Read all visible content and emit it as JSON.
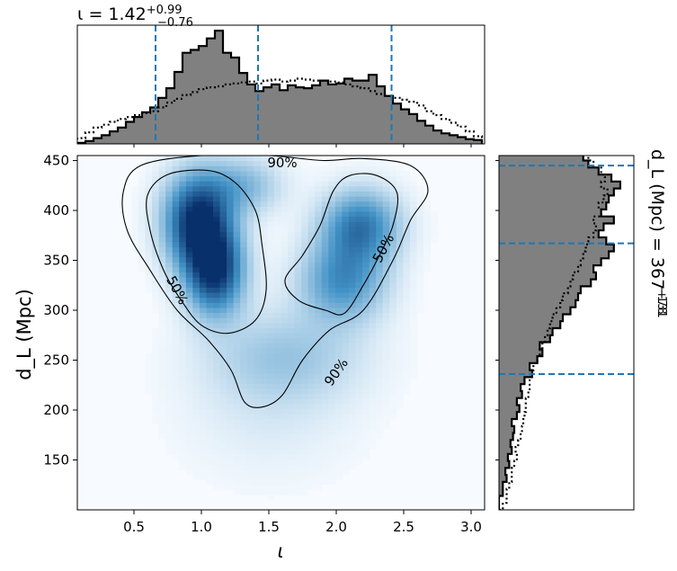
{
  "chart_data": [
    {
      "panel": "top-marginal",
      "type": "histogram",
      "title": "ι = 1.42",
      "title_sup": "+0.99",
      "title_sub": "−0.76",
      "xlim": [
        0.08,
        3.1
      ],
      "quantiles": [
        0.66,
        1.42,
        2.41
      ],
      "bins": [
        0.08,
        0.14,
        0.2,
        0.26,
        0.32,
        0.38,
        0.44,
        0.5,
        0.56,
        0.62,
        0.68,
        0.74,
        0.8,
        0.86,
        0.92,
        0.98,
        1.04,
        1.1,
        1.16,
        1.22,
        1.28,
        1.34,
        1.4,
        1.46,
        1.52,
        1.58,
        1.64,
        1.7,
        1.76,
        1.82,
        1.88,
        1.94,
        2.0,
        2.06,
        2.12,
        2.18,
        2.24,
        2.3,
        2.36,
        2.42,
        2.48,
        2.54,
        2.6,
        2.66,
        2.72,
        2.78,
        2.84,
        2.9,
        2.96,
        3.02,
        3.08
      ],
      "series": [
        {
          "style": "filled-black-edge",
          "values": [
            0.01,
            0.03,
            0.06,
            0.09,
            0.13,
            0.17,
            0.23,
            0.28,
            0.33,
            0.38,
            0.48,
            0.58,
            0.75,
            0.95,
            0.98,
            1.02,
            1.1,
            1.18,
            0.95,
            0.9,
            0.74,
            0.62,
            0.55,
            0.59,
            0.62,
            0.56,
            0.61,
            0.59,
            0.58,
            0.61,
            0.66,
            0.62,
            0.63,
            0.68,
            0.66,
            0.66,
            0.72,
            0.6,
            0.5,
            0.42,
            0.36,
            0.31,
            0.24,
            0.19,
            0.14,
            0.11,
            0.09,
            0.07,
            0.05,
            0.04
          ]
        },
        {
          "style": "dotted",
          "values": [
            0.06,
            0.12,
            0.17,
            0.2,
            0.23,
            0.26,
            0.28,
            0.3,
            0.32,
            0.34,
            0.38,
            0.43,
            0.47,
            0.51,
            0.54,
            0.57,
            0.59,
            0.6,
            0.62,
            0.63,
            0.64,
            0.65,
            0.63,
            0.66,
            0.67,
            0.65,
            0.66,
            0.68,
            0.67,
            0.66,
            0.66,
            0.65,
            0.64,
            0.62,
            0.6,
            0.58,
            0.55,
            0.52,
            0.5,
            0.48,
            0.46,
            0.44,
            0.4,
            0.34,
            0.3,
            0.26,
            0.22,
            0.18,
            0.13,
            0.08
          ]
        }
      ]
    },
    {
      "panel": "joint",
      "type": "heatmap",
      "xlabel": "ι",
      "ylabel": "d_L (Mpc)",
      "xlim": [
        0.08,
        3.1
      ],
      "ylim": [
        100,
        455
      ],
      "xticks": [
        "0.5",
        "1.0",
        "1.5",
        "2.0",
        "2.5",
        "3.0"
      ],
      "yticks": [
        "150",
        "200",
        "250",
        "300",
        "350",
        "400",
        "450"
      ],
      "blobs": [
        {
          "x": 0.97,
          "y": 390,
          "sx": 0.17,
          "sy": 32,
          "w": 1.0
        },
        {
          "x": 1.1,
          "y": 340,
          "sx": 0.15,
          "sy": 30,
          "w": 0.95
        },
        {
          "x": 1.3,
          "y": 425,
          "sx": 0.2,
          "sy": 20,
          "w": 0.35
        },
        {
          "x": 2.18,
          "y": 385,
          "sx": 0.2,
          "sy": 25,
          "w": 0.65
        },
        {
          "x": 2.05,
          "y": 330,
          "sx": 0.22,
          "sy": 28,
          "w": 0.55
        },
        {
          "x": 1.62,
          "y": 255,
          "sx": 0.4,
          "sy": 32,
          "w": 0.26
        },
        {
          "x": 1.5,
          "y": 195,
          "sx": 0.45,
          "sy": 45,
          "w": 0.08
        }
      ],
      "contours": [
        {
          "label": "90%",
          "points": [
            [
              0.42,
              418
            ],
            [
              0.55,
              445
            ],
            [
              1.0,
              455
            ],
            [
              1.5,
              455
            ],
            [
              1.9,
              450
            ],
            [
              2.2,
              452
            ],
            [
              2.55,
              445
            ],
            [
              2.68,
              420
            ],
            [
              2.55,
              390
            ],
            [
              2.42,
              350
            ],
            [
              2.2,
              300
            ],
            [
              1.95,
              280
            ],
            [
              1.75,
              250
            ],
            [
              1.6,
              215
            ],
            [
              1.45,
              203
            ],
            [
              1.32,
              208
            ],
            [
              1.22,
              240
            ],
            [
              1.05,
              270
            ],
            [
              0.82,
              300
            ],
            [
              0.62,
              340
            ],
            [
              0.45,
              380
            ],
            [
              0.42,
              418
            ]
          ]
        },
        {
          "label": "50%",
          "points": [
            [
              0.6,
              415
            ],
            [
              0.75,
              436
            ],
            [
              1.05,
              440
            ],
            [
              1.25,
              428
            ],
            [
              1.4,
              400
            ],
            [
              1.45,
              365
            ],
            [
              1.48,
              320
            ],
            [
              1.4,
              290
            ],
            [
              1.2,
              277
            ],
            [
              1.0,
              285
            ],
            [
              0.85,
              310
            ],
            [
              0.72,
              340
            ],
            [
              0.62,
              380
            ],
            [
              0.6,
              415
            ]
          ]
        },
        {
          "label": "50%",
          "points": [
            [
              1.98,
              420
            ],
            [
              2.1,
              435
            ],
            [
              2.3,
              435
            ],
            [
              2.45,
              418
            ],
            [
              2.42,
              385
            ],
            [
              2.32,
              355
            ],
            [
              2.2,
              325
            ],
            [
              2.06,
              297
            ],
            [
              1.92,
              300
            ],
            [
              1.72,
              310
            ],
            [
              1.62,
              330
            ],
            [
              1.75,
              355
            ],
            [
              1.88,
              385
            ],
            [
              1.98,
              420
            ]
          ]
        }
      ],
      "annotations": [
        {
          "text": "90%",
          "x": 1.6,
          "y": 448
        },
        {
          "text": "50%",
          "x": 0.82,
          "y": 320
        },
        {
          "text": "50%",
          "x": 2.35,
          "y": 362
        },
        {
          "text": "90%",
          "x": 2.0,
          "y": 238
        }
      ]
    },
    {
      "panel": "right-marginal",
      "type": "histogram",
      "orientation": "horizontal",
      "title": "d_L (Mpc) = 367",
      "title_sup": "+78",
      "title_sub": "−131",
      "ylim": [
        100,
        455
      ],
      "quantiles": [
        236,
        367,
        445
      ],
      "bins": [
        100,
        107,
        114,
        121,
        128,
        135,
        142,
        149,
        156,
        163,
        170,
        177,
        184,
        191,
        198,
        205,
        212,
        219,
        226,
        233,
        240,
        247,
        254,
        261,
        268,
        275,
        282,
        289,
        296,
        303,
        310,
        317,
        324,
        331,
        338,
        345,
        352,
        359,
        366,
        373,
        380,
        387,
        394,
        401,
        408,
        415,
        422,
        429,
        436,
        443,
        450,
        457
      ],
      "series": [
        {
          "style": "filled-black-edge",
          "values": [
            0.0,
            0.0,
            0.03,
            0.03,
            0.06,
            0.05,
            0.08,
            0.07,
            0.1,
            0.09,
            0.11,
            0.12,
            0.1,
            0.14,
            0.16,
            0.14,
            0.18,
            0.17,
            0.2,
            0.26,
            0.24,
            0.3,
            0.34,
            0.32,
            0.4,
            0.42,
            0.48,
            0.5,
            0.56,
            0.6,
            0.62,
            0.64,
            0.72,
            0.76,
            0.74,
            0.8,
            0.86,
            0.9,
            0.84,
            0.78,
            0.82,
            0.9,
            0.8,
            0.84,
            0.86,
            0.9,
            0.95,
            0.88,
            0.78,
            0.7,
            0.66
          ]
        },
        {
          "style": "dotted",
          "values": [
            0.03,
            0.06,
            0.06,
            0.08,
            0.1,
            0.1,
            0.12,
            0.14,
            0.13,
            0.15,
            0.17,
            0.18,
            0.19,
            0.2,
            0.21,
            0.21,
            0.23,
            0.24,
            0.24,
            0.26,
            0.27,
            0.3,
            0.32,
            0.34,
            0.36,
            0.38,
            0.4,
            0.42,
            0.45,
            0.48,
            0.5,
            0.54,
            0.56,
            0.58,
            0.62,
            0.64,
            0.66,
            0.68,
            0.7,
            0.74,
            0.76,
            0.74,
            0.8,
            0.78,
            0.82,
            0.85,
            0.8,
            0.83,
            0.8,
            0.74,
            0.7
          ]
        }
      ]
    }
  ],
  "colors": {
    "hist_fill": "#808080",
    "quantile_line": "#1f77b4",
    "heat_low": "#f7fbff",
    "heat_high": "#08306b"
  }
}
